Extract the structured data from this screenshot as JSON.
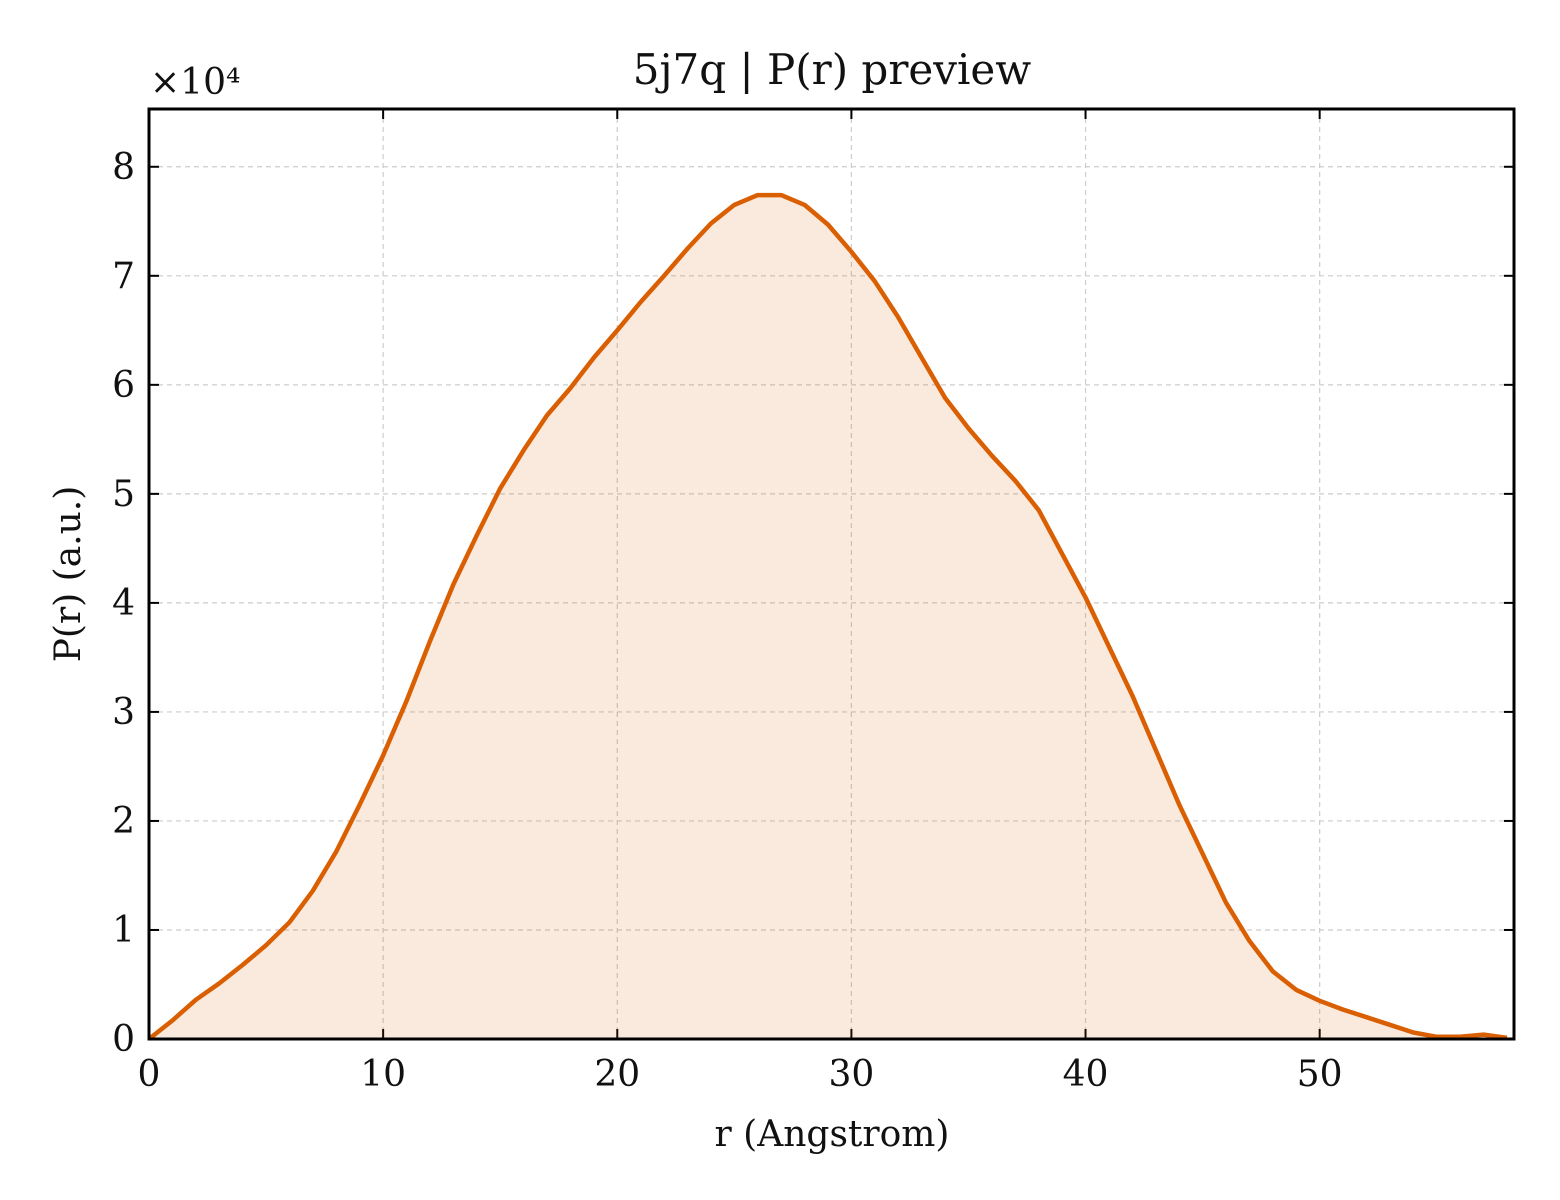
{
  "chart_data": {
    "type": "area",
    "title": "5j7q | P(r) preview",
    "x_label": "r (Angstrom)",
    "y_label": "P(r) (a.u.)",
    "y_offset_label": "×10⁴",
    "x": [
      0,
      1,
      2,
      3,
      4,
      5,
      6,
      7,
      8,
      9,
      10,
      11,
      12,
      13,
      14,
      15,
      16,
      17,
      18,
      19,
      20,
      21,
      22,
      23,
      24,
      25,
      26,
      27,
      28,
      29,
      30,
      31,
      32,
      33,
      34,
      35,
      36,
      37,
      38,
      39,
      40,
      41,
      42,
      43,
      44,
      45,
      46,
      47,
      48,
      49,
      50,
      51,
      52,
      53,
      54,
      55,
      56,
      57,
      58
    ],
    "series": [
      {
        "name": "P(r)",
        "color": "#d95f02",
        "values": [
          0,
          0.17,
          0.36,
          0.51,
          0.68,
          0.86,
          1.07,
          1.36,
          1.72,
          2.15,
          2.6,
          3.1,
          3.65,
          4.17,
          4.62,
          5.05,
          5.4,
          5.72,
          5.97,
          6.25,
          6.5,
          6.76,
          7.0,
          7.25,
          7.48,
          7.65,
          7.74,
          7.74,
          7.65,
          7.47,
          7.22,
          6.95,
          6.62,
          6.25,
          5.88,
          5.6,
          5.35,
          5.12,
          4.85,
          4.45,
          4.05,
          3.6,
          3.15,
          2.65,
          2.15,
          1.7,
          1.25,
          0.9,
          0.62,
          0.45,
          0.35,
          0.27,
          0.2,
          0.13,
          0.06,
          0.02,
          0.02,
          0.04,
          0.01
        ]
      }
    ],
    "xlim": [
      0,
      58.3
    ],
    "ylim": [
      0,
      8.53
    ],
    "xticks": [
      0,
      10,
      20,
      30,
      40,
      50
    ],
    "yticks": [
      0,
      1,
      2,
      3,
      4,
      5,
      6,
      7,
      8
    ],
    "grid": true
  }
}
